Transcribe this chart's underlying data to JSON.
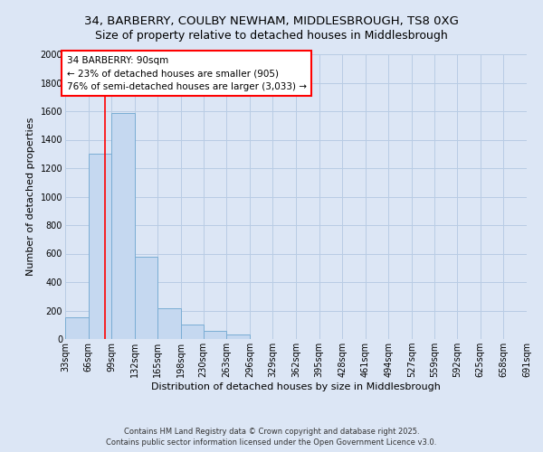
{
  "title_line1": "34, BARBERRY, COULBY NEWHAM, MIDDLESBROUGH, TS8 0XG",
  "title_line2": "Size of property relative to detached houses in Middlesbrough",
  "xlabel": "Distribution of detached houses by size in Middlesbrough",
  "ylabel": "Number of detached properties",
  "bin_edges": [
    33,
    66,
    99,
    132,
    165,
    198,
    230,
    263,
    296,
    329,
    362,
    395,
    428,
    461,
    494,
    527,
    559,
    592,
    625,
    658,
    691
  ],
  "bar_heights": [
    150,
    1300,
    1590,
    580,
    215,
    100,
    55,
    32,
    0,
    0,
    0,
    0,
    0,
    0,
    0,
    0,
    0,
    0,
    0,
    0
  ],
  "bar_color": "#c5d8f0",
  "bar_edgecolor": "#7aadd4",
  "bar_linewidth": 0.7,
  "grid_color": "#b8cce4",
  "background_color": "#dce6f5",
  "red_line_x": 90,
  "annotation_line1": "34 BARBERRY: 90sqm",
  "annotation_line2": "← 23% of detached houses are smaller (905)",
  "annotation_line3": "76% of semi-detached houses are larger (3,033) →",
  "footer_line1": "Contains HM Land Registry data © Crown copyright and database right 2025.",
  "footer_line2": "Contains public sector information licensed under the Open Government Licence v3.0.",
  "ylim": [
    0,
    2000
  ],
  "yticks": [
    0,
    200,
    400,
    600,
    800,
    1000,
    1200,
    1400,
    1600,
    1800,
    2000
  ],
  "title_fontsize": 9.5,
  "title2_fontsize": 9,
  "axis_label_fontsize": 8,
  "tick_fontsize": 7,
  "footer_fontsize": 6,
  "annotation_fontsize": 7.5
}
